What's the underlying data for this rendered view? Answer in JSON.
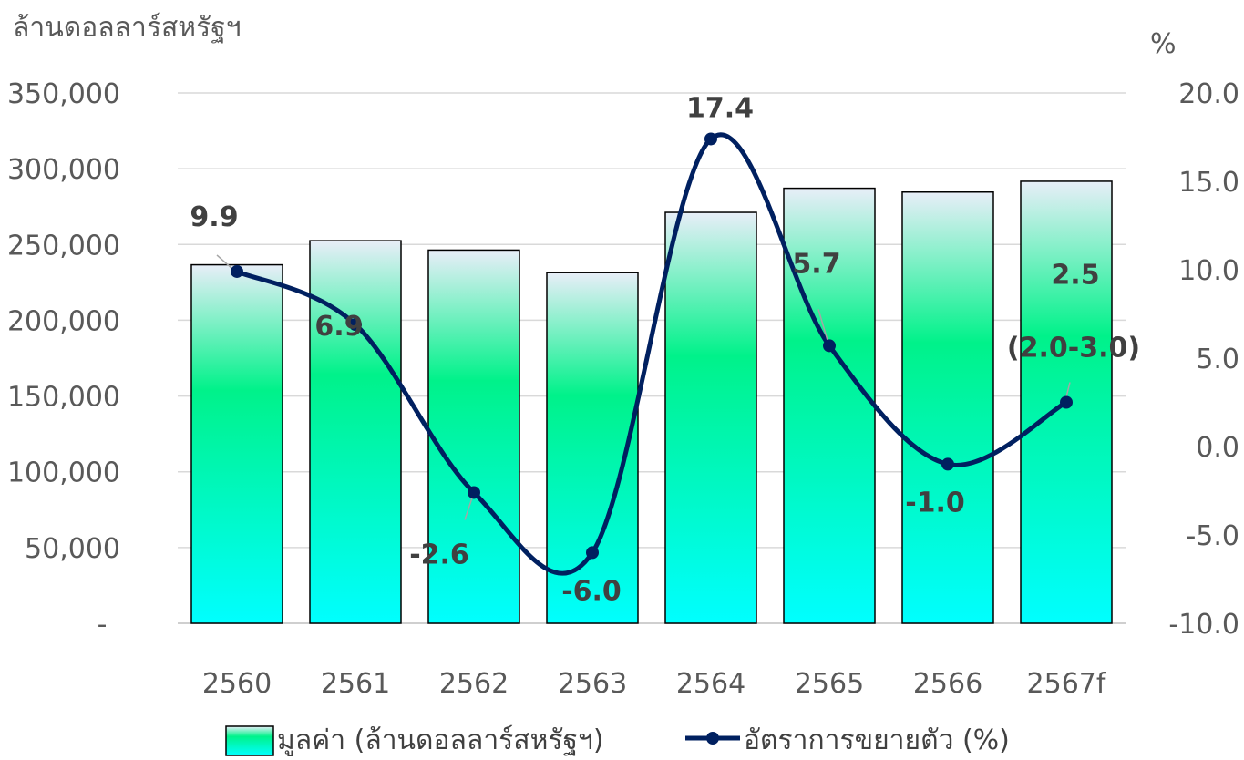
{
  "chart_data": {
    "type": "bar",
    "categories": [
      "2560",
      "2561",
      "2562",
      "2563",
      "2564",
      "2565",
      "2566",
      "2567f"
    ],
    "y_left_label": "ล้านดอลลาร์สหรัฐฯ",
    "y_right_label": "%",
    "ylim_left": [
      0,
      350000
    ],
    "ylim_right": [
      -10,
      20
    ],
    "yticks_left": [
      "-",
      "50,000",
      "100,000",
      "150,000",
      "200,000",
      "250,000",
      "300,000",
      "350,000"
    ],
    "yticks_right": [
      "-10.0",
      "-5.0",
      "0.0",
      "5.0",
      "10.0",
      "15.0",
      "20.0"
    ],
    "grid": true,
    "legend_position": "bottom",
    "series": [
      {
        "name": "มูลค่า (ล้านดอลลาร์สหรัฐฯ)",
        "type": "bar",
        "axis": "left",
        "values": [
          236600,
          252500,
          246300,
          231400,
          271200,
          287100,
          284600,
          291700
        ],
        "colors": {
          "top": "#e8eef8",
          "mid": "#00f28a",
          "bottom": "#00ffff",
          "border": "#000000"
        }
      },
      {
        "name": "อัตราการขยายตัว (%)",
        "type": "line",
        "axis": "right",
        "values": [
          9.9,
          6.9,
          -2.6,
          -6.0,
          17.4,
          5.7,
          -1.0,
          2.5
        ],
        "labels": [
          "9.9",
          "6.9",
          "-2.6",
          "-6.0",
          "17.4",
          "5.7",
          "-1.0",
          "2.5"
        ],
        "extra_label": "(2.0-3.0)",
        "color": "#002060"
      }
    ]
  }
}
